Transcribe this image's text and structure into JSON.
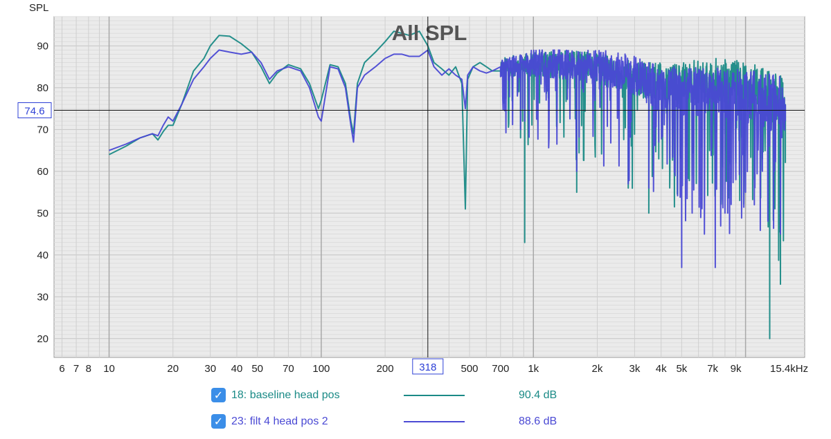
{
  "chart_data": {
    "type": "line",
    "title": "All SPL",
    "ylabel": "SPL",
    "xscale": "log",
    "xlim": [
      5.5,
      19000
    ],
    "ylim": [
      15.5,
      97
    ],
    "yticks": [
      20,
      30,
      40,
      50,
      60,
      70,
      80,
      90
    ],
    "xticks": [
      {
        "v": 6,
        "l": "6"
      },
      {
        "v": 7,
        "l": "7"
      },
      {
        "v": 8,
        "l": "8"
      },
      {
        "v": 10,
        "l": "10"
      },
      {
        "v": 20,
        "l": "20"
      },
      {
        "v": 30,
        "l": "30"
      },
      {
        "v": 40,
        "l": "40"
      },
      {
        "v": 50,
        "l": "50"
      },
      {
        "v": 70,
        "l": "70"
      },
      {
        "v": 100,
        "l": "100"
      },
      {
        "v": 200,
        "l": "200"
      },
      {
        "v": 500,
        "l": "500"
      },
      {
        "v": 700,
        "l": "700"
      },
      {
        "v": 1000,
        "l": "1k"
      },
      {
        "v": 2000,
        "l": "2k"
      },
      {
        "v": 3000,
        "l": "3k"
      },
      {
        "v": 4000,
        "l": "4k"
      },
      {
        "v": 5000,
        "l": "5k"
      },
      {
        "v": 7000,
        "l": "7k"
      },
      {
        "v": 9000,
        "l": "9k"
      },
      {
        "v": 15400,
        "l": "15.4kHz"
      }
    ],
    "cursor": {
      "x": 318,
      "y": 74.6,
      "x_label": "318",
      "y_label": "74.6"
    },
    "grid": true,
    "legend_placement": "bottom",
    "series": [
      {
        "name": "18: baseline head pos",
        "value_label": "90.4 dB",
        "color": "#1a8a86",
        "points": [
          [
            10,
            64
          ],
          [
            12,
            66
          ],
          [
            14,
            68
          ],
          [
            16,
            69
          ],
          [
            17,
            67.5
          ],
          [
            18,
            69.5
          ],
          [
            19,
            71
          ],
          [
            20,
            71
          ],
          [
            22,
            76
          ],
          [
            25,
            84
          ],
          [
            28,
            87
          ],
          [
            30,
            90
          ],
          [
            33,
            92.5
          ],
          [
            37,
            92.3
          ],
          [
            42,
            90.5
          ],
          [
            47,
            88.5
          ],
          [
            52,
            85
          ],
          [
            57,
            81
          ],
          [
            62,
            83.5
          ],
          [
            70,
            85.5
          ],
          [
            80,
            84.5
          ],
          [
            88,
            81
          ],
          [
            97,
            75
          ],
          [
            100,
            77
          ],
          [
            110,
            85.5
          ],
          [
            120,
            85
          ],
          [
            130,
            81
          ],
          [
            138,
            72
          ],
          [
            142,
            69
          ],
          [
            148,
            81
          ],
          [
            160,
            86
          ],
          [
            180,
            88.5
          ],
          [
            200,
            91
          ],
          [
            220,
            93.5
          ],
          [
            240,
            93
          ],
          [
            260,
            92.5
          ],
          [
            290,
            93.5
          ],
          [
            318,
            90
          ],
          [
            340,
            86
          ],
          [
            370,
            84.5
          ],
          [
            400,
            83
          ],
          [
            430,
            85
          ],
          [
            460,
            81
          ],
          [
            478,
            51
          ],
          [
            490,
            82
          ],
          [
            520,
            85
          ],
          [
            560,
            86
          ],
          [
            600,
            85
          ],
          [
            640,
            84
          ],
          [
            700,
            84
          ],
          [
            760,
            85
          ],
          [
            800,
            83
          ],
          [
            840,
            79
          ],
          [
            870,
            68
          ],
          [
            890,
            72
          ],
          [
            910,
            43
          ],
          [
            950,
            80
          ],
          [
            1000,
            84
          ],
          [
            1100,
            86.5
          ],
          [
            1200,
            85
          ],
          [
            1300,
            87
          ],
          [
            1400,
            84
          ],
          [
            1500,
            86
          ],
          [
            1600,
            55
          ],
          [
            1700,
            85
          ],
          [
            1800,
            87
          ],
          [
            1900,
            84
          ],
          [
            2000,
            86
          ],
          [
            2200,
            84
          ],
          [
            2300,
            77
          ],
          [
            2500,
            85
          ],
          [
            2700,
            83
          ],
          [
            2800,
            56
          ],
          [
            3000,
            82
          ],
          [
            3200,
            85
          ],
          [
            3400,
            79
          ],
          [
            3500,
            50
          ],
          [
            3700,
            82
          ],
          [
            3900,
            63
          ],
          [
            4100,
            80
          ],
          [
            4400,
            60
          ],
          [
            4700,
            79
          ],
          [
            5000,
            66
          ],
          [
            5300,
            82
          ],
          [
            5600,
            59
          ],
          [
            6000,
            83
          ],
          [
            6400,
            70
          ],
          [
            6800,
            84
          ],
          [
            7200,
            62
          ],
          [
            7600,
            83
          ],
          [
            8000,
            69
          ],
          [
            8500,
            84
          ],
          [
            9000,
            62
          ],
          [
            9500,
            82
          ],
          [
            10000,
            65
          ],
          [
            10500,
            82
          ],
          [
            11000,
            58
          ],
          [
            11500,
            80
          ],
          [
            12000,
            63
          ],
          [
            12500,
            79
          ],
          [
            13000,
            20
          ],
          [
            13300,
            78
          ],
          [
            13700,
            55
          ],
          [
            14200,
            76
          ],
          [
            14600,
            33
          ],
          [
            15000,
            72
          ],
          [
            15400,
            62
          ]
        ],
        "hf": {
          "from": 700,
          "to": 15400,
          "base": [
            [
              700,
              85
            ],
            [
              1000,
              85.5
            ],
            [
              1500,
              85.5
            ],
            [
              2000,
              84.5
            ],
            [
              3000,
              82
            ],
            [
              5000,
              81
            ],
            [
              7000,
              82
            ],
            [
              9000,
              81
            ],
            [
              12000,
              79
            ],
            [
              15400,
              76
            ]
          ],
          "jitter": 4,
          "dips": 30,
          "seed": 11
        }
      },
      {
        "name": "23: filt 4 head pos 2",
        "value_label": "88.6 dB",
        "color": "#4a49d4",
        "points": [
          [
            10,
            65
          ],
          [
            12,
            66.5
          ],
          [
            14,
            68
          ],
          [
            16,
            69
          ],
          [
            17,
            68.5
          ],
          [
            18,
            71
          ],
          [
            19,
            73
          ],
          [
            20,
            72
          ],
          [
            22,
            76
          ],
          [
            25,
            82
          ],
          [
            28,
            85
          ],
          [
            30,
            87
          ],
          [
            33,
            89
          ],
          [
            37,
            88.5
          ],
          [
            42,
            88
          ],
          [
            47,
            88.5
          ],
          [
            52,
            86
          ],
          [
            57,
            82
          ],
          [
            62,
            84
          ],
          [
            70,
            85
          ],
          [
            80,
            84
          ],
          [
            88,
            80
          ],
          [
            97,
            73
          ],
          [
            100,
            72
          ],
          [
            110,
            85
          ],
          [
            120,
            84.5
          ],
          [
            130,
            80
          ],
          [
            138,
            71
          ],
          [
            142,
            67
          ],
          [
            148,
            80
          ],
          [
            160,
            83
          ],
          [
            180,
            85
          ],
          [
            200,
            87
          ],
          [
            220,
            88
          ],
          [
            240,
            88
          ],
          [
            260,
            87.5
          ],
          [
            290,
            87.5
          ],
          [
            318,
            89
          ],
          [
            340,
            85
          ],
          [
            370,
            83
          ],
          [
            400,
            84.5
          ],
          [
            430,
            83
          ],
          [
            460,
            82
          ],
          [
            478,
            75
          ],
          [
            490,
            83
          ],
          [
            520,
            85
          ],
          [
            560,
            84
          ],
          [
            600,
            83.5
          ],
          [
            640,
            84
          ],
          [
            700,
            85
          ],
          [
            760,
            84
          ],
          [
            800,
            82
          ],
          [
            840,
            78
          ],
          [
            870,
            70
          ],
          [
            890,
            75
          ],
          [
            910,
            72
          ],
          [
            950,
            82
          ],
          [
            1000,
            86
          ],
          [
            1100,
            89
          ],
          [
            1200,
            84
          ],
          [
            1300,
            88
          ],
          [
            1400,
            83
          ],
          [
            1500,
            86
          ],
          [
            1600,
            60
          ],
          [
            1700,
            85
          ],
          [
            1800,
            88
          ],
          [
            1900,
            84
          ],
          [
            2000,
            87
          ],
          [
            2200,
            85
          ],
          [
            2300,
            78
          ],
          [
            2500,
            86
          ],
          [
            2700,
            83
          ],
          [
            2800,
            57
          ],
          [
            3000,
            82
          ],
          [
            3200,
            86
          ],
          [
            3400,
            80
          ],
          [
            3500,
            56
          ],
          [
            3700,
            83
          ],
          [
            3900,
            67
          ],
          [
            4100,
            80
          ],
          [
            4400,
            63
          ],
          [
            4700,
            78
          ],
          [
            5000,
            37
          ],
          [
            5300,
            80
          ],
          [
            5600,
            50
          ],
          [
            6000,
            79
          ],
          [
            6400,
            45
          ],
          [
            6800,
            80
          ],
          [
            7200,
            37
          ],
          [
            7600,
            78
          ],
          [
            8000,
            50
          ],
          [
            8500,
            80
          ],
          [
            9000,
            58
          ],
          [
            9500,
            79
          ],
          [
            10000,
            55
          ],
          [
            10500,
            80
          ],
          [
            11000,
            52
          ],
          [
            11500,
            78
          ],
          [
            12000,
            60
          ],
          [
            12500,
            77
          ],
          [
            13000,
            66
          ],
          [
            13300,
            78
          ],
          [
            13700,
            60
          ],
          [
            14200,
            76
          ],
          [
            14600,
            45
          ],
          [
            15000,
            77
          ],
          [
            15400,
            72
          ]
        ],
        "hf": {
          "from": 700,
          "to": 15400,
          "base": [
            [
              700,
              84
            ],
            [
              1000,
              86
            ],
            [
              1500,
              85.5
            ],
            [
              2000,
              85
            ],
            [
              3000,
              83
            ],
            [
              5000,
              79
            ],
            [
              7000,
              79
            ],
            [
              9000,
              78
            ],
            [
              12000,
              77
            ],
            [
              15400,
              76
            ]
          ],
          "jitter": 4.5,
          "dips": 34,
          "seed": 29
        }
      }
    ]
  }
}
